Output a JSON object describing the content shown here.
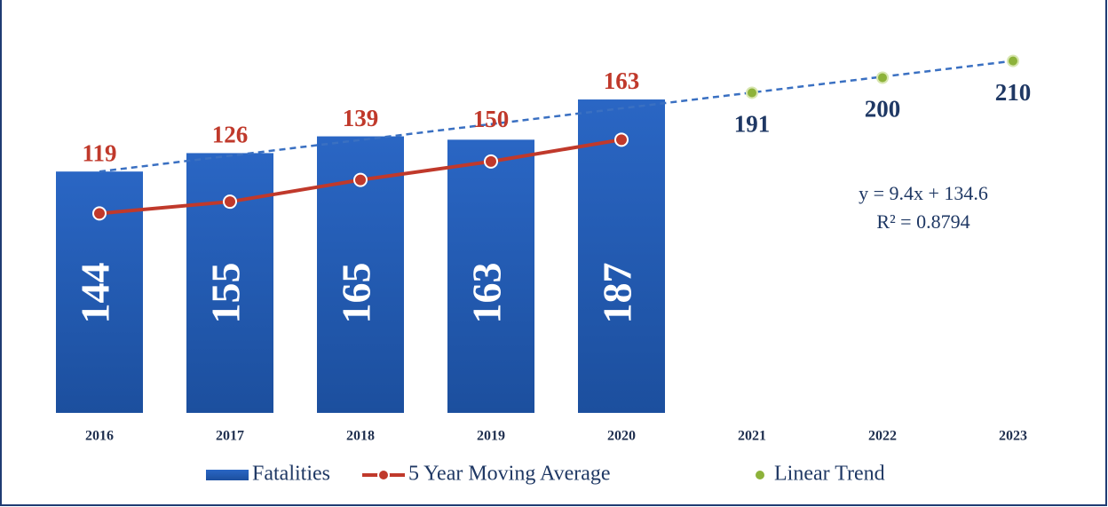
{
  "chart_data": {
    "type": "bar",
    "categories": [
      "2016",
      "2017",
      "2018",
      "2019",
      "2020",
      "2021",
      "2022",
      "2023"
    ],
    "series": [
      {
        "name": "Fatalities",
        "type": "bar",
        "color": "#2a66c4",
        "values": [
          144,
          155,
          165,
          163,
          187,
          null,
          null,
          null
        ]
      },
      {
        "name": "5 Year Moving Average",
        "type": "line",
        "color": "#c0392b",
        "values": [
          119,
          126,
          139,
          150,
          163,
          null,
          null,
          null
        ]
      },
      {
        "name": "Linear Trend",
        "type": "scatter",
        "color": "#8db23a",
        "values": [
          null,
          null,
          null,
          null,
          null,
          191,
          200,
          210
        ]
      }
    ],
    "trend_line": {
      "color": "#3a70c2",
      "values": [
        144,
        null,
        null,
        null,
        null,
        null,
        null,
        210
      ]
    },
    "annotations": [
      "y = 9.4x + 134.6",
      "R² = 0.8794"
    ],
    "ylim": [
      0,
      240
    ]
  }
}
